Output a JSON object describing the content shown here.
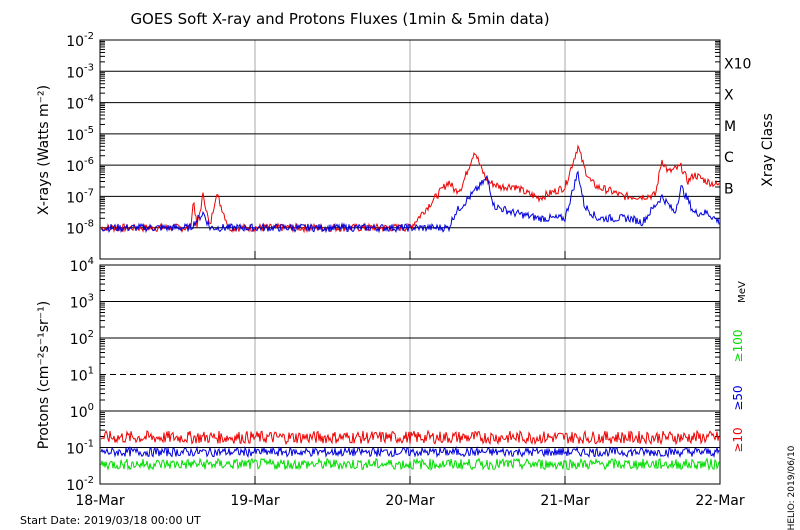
{
  "title": "GOES Soft X-ray and Protons Fluxes   (1min & 5min data)",
  "footer": {
    "start_date": "Start Date: 2019/03/18 00:00 UT",
    "credit": "HELIO: 2019/06/10"
  },
  "colors": {
    "red": "#ee0000",
    "blue": "#0000dd",
    "green": "#00dd00",
    "grid": "#000000",
    "day_line": "#aaaaaa"
  },
  "chart_data": [
    {
      "type": "line",
      "title": "",
      "ylabel": "X-rays (Watts m⁻²)",
      "yscale": "log",
      "ylim": [
        1e-09,
        0.01
      ],
      "ytick_labels": [
        {
          "base": "10",
          "exp": "-2"
        },
        {
          "base": "10",
          "exp": "-3"
        },
        {
          "base": "10",
          "exp": "-4"
        },
        {
          "base": "10",
          "exp": "-5"
        },
        {
          "base": "10",
          "exp": "-6"
        },
        {
          "base": "10",
          "exp": "-7"
        },
        {
          "base": "10",
          "exp": "-8"
        }
      ],
      "right_axis_title": "Xray Class",
      "class_labels": [
        "X10",
        "X",
        "M",
        "C",
        "B"
      ],
      "series": [
        {
          "color": "red",
          "x": [
            "2019-03-18 00:00",
            "2019-03-18 14:00",
            "2019-03-18 14:30",
            "2019-03-18 15:00",
            "2019-03-18 16:00",
            "2019-03-18 17:00",
            "2019-03-18 18:00",
            "2019-03-18 20:00",
            "2019-03-20 00:00",
            "2019-03-20 06:00",
            "2019-03-20 07:00",
            "2019-03-20 08:00",
            "2019-03-20 10:00",
            "2019-03-20 11:00",
            "2019-03-20 12:00",
            "2019-03-20 13:00",
            "2019-03-20 14:00",
            "2019-03-20 16:00",
            "2019-03-20 18:00",
            "2019-03-20 20:00",
            "2019-03-21 00:00",
            "2019-03-21 02:00",
            "2019-03-21 03:00",
            "2019-03-21 04:00",
            "2019-03-21 05:00",
            "2019-03-21 07:00",
            "2019-03-21 09:00",
            "2019-03-21 12:00",
            "2019-03-21 14:00",
            "2019-03-21 15:00",
            "2019-03-21 16:00",
            "2019-03-21 18:00",
            "2019-03-21 19:00",
            "2019-03-21 20:00",
            "2019-03-21 22:00",
            "2019-03-22 00:00"
          ],
          "y": [
            1e-08,
            1e-08,
            8e-08,
            1e-08,
            1.2e-07,
            1e-08,
            1.3e-07,
            1e-08,
            1e-08,
            3e-07,
            1.5e-07,
            2e-07,
            3e-06,
            8e-07,
            3e-07,
            2.5e-07,
            2e-07,
            2.2e-07,
            1.3e-07,
            9e-08,
            2e-07,
            4e-06,
            8e-07,
            3e-07,
            2e-07,
            1.5e-07,
            1e-07,
            1e-07,
            1.1e-07,
            1.5e-06,
            6e-07,
            9e-07,
            3e-07,
            5e-07,
            3e-07,
            2.2e-07
          ]
        },
        {
          "color": "blue",
          "x": [
            "2019-03-18 00:00",
            "2019-03-18 14:00",
            "2019-03-18 16:00",
            "2019-03-18 17:00",
            "2019-03-18 20:00",
            "2019-03-19 12:00",
            "2019-03-19 20:00",
            "2019-03-20 06:00",
            "2019-03-20 07:00",
            "2019-03-20 12:00",
            "2019-03-20 13:00",
            "2019-03-20 16:00",
            "2019-03-20 20:00",
            "2019-03-21 00:00",
            "2019-03-21 02:00",
            "2019-03-21 03:00",
            "2019-03-21 05:00",
            "2019-03-21 10:00",
            "2019-03-21 12:00",
            "2019-03-21 15:00",
            "2019-03-21 17:00",
            "2019-03-21 18:00",
            "2019-03-21 20:00",
            "2019-03-21 22:00",
            "2019-03-22 00:00"
          ],
          "y": [
            1e-08,
            1e-08,
            3e-08,
            1e-08,
            1e-08,
            1e-08,
            1e-08,
            1e-08,
            3e-08,
            4e-07,
            5e-08,
            3e-08,
            2e-08,
            2e-08,
            6e-07,
            5e-08,
            2e-08,
            2e-08,
            1.5e-08,
            1e-07,
            3e-08,
            2e-07,
            3e-08,
            3e-08,
            1.5e-08
          ]
        }
      ]
    },
    {
      "type": "line",
      "title": "",
      "ylabel": "Protons (cm⁻²s⁻¹sr⁻¹)",
      "yscale": "log",
      "ylim": [
        0.01,
        10000
      ],
      "ytick_labels": [
        {
          "base": "10",
          "exp": "4"
        },
        {
          "base": "10",
          "exp": "3"
        },
        {
          "base": "10",
          "exp": "2"
        },
        {
          "base": "10",
          "exp": "1"
        },
        {
          "base": "10",
          "exp": "0"
        },
        {
          "base": "10",
          "exp": "-1"
        },
        {
          "base": "10",
          "exp": "-2"
        }
      ],
      "energy_unit": "MeV",
      "threshold_dashed": 10,
      "series": [
        {
          "name": "≥10",
          "color": "red",
          "mean": 0.19,
          "spread": 0.35
        },
        {
          "name": "≥50",
          "color": "blue",
          "mean": 0.075,
          "spread": 0.25
        },
        {
          "name": "≥100",
          "color": "green",
          "mean": 0.035,
          "spread": 0.3
        }
      ]
    }
  ],
  "x_axis": {
    "labels": [
      "18-Mar",
      "19-Mar",
      "20-Mar",
      "21-Mar",
      "22-Mar"
    ],
    "range": [
      "2019-03-18 00:00",
      "2019-03-22 00:00"
    ]
  }
}
